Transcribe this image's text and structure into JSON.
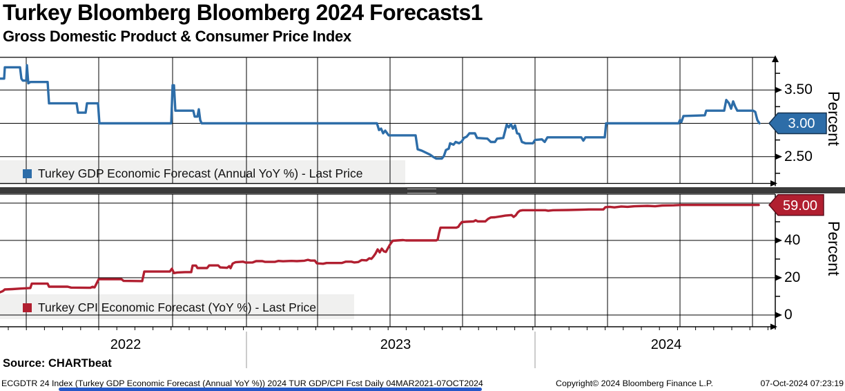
{
  "title": "Turkey Bloomberg Bloomberg 2024 Forecasts1",
  "subtitle": "Gross Domestic Product & Consumer Price Index",
  "source": "Source: CHARTbeat",
  "footer": {
    "index_info": "ECGDTR 24 Index (Turkey GDP Economic Forecast (Annual YoY %)) 2024 TUR GDP/CPI Fcst  Daily 04MAR2021-07OCT2024",
    "copyright": "Copyright© 2024 Bloomberg Finance L.P.",
    "datetime": "07-Oct-2024 07:23:19"
  },
  "x_axis": {
    "years": [
      "2022",
      "2023",
      "2024"
    ],
    "date_range": "04MAR2021-07OCT2024"
  },
  "chart_data": [
    {
      "type": "line",
      "panel": "top",
      "ylabel": "Percent",
      "ylim": [
        2.1,
        4.0
      ],
      "grid": true,
      "legend_position": "bottom-left",
      "yticks": [
        {
          "v": 3.5,
          "label": "3.50"
        },
        {
          "v": 3.0,
          "label": "",
          "tag": true
        },
        {
          "v": 2.5,
          "label": "2.50"
        }
      ],
      "yticks_minor": [
        3.75,
        3.25,
        2.75,
        2.25
      ],
      "grid_values": [
        3.5,
        3.0,
        2.5
      ],
      "series": [
        {
          "name": "Turkey GDP Economic Forecast (Annual YoY %) - Last Price",
          "color": "#2d6da8",
          "last_price": "3.00",
          "last_value": 3.0,
          "points": [
            [
              0,
              3.67
            ],
            [
              6,
              3.67
            ],
            [
              7,
              3.84
            ],
            [
              29,
              3.84
            ],
            [
              31,
              3.67
            ],
            [
              33,
              3.64
            ],
            [
              38,
              3.64
            ],
            [
              39,
              3.87
            ],
            [
              41,
              3.6
            ],
            [
              44,
              3.62
            ],
            [
              69,
              3.62
            ],
            [
              71,
              3.3
            ],
            [
              111,
              3.3
            ],
            [
              113,
              3.16
            ],
            [
              124,
              3.16
            ],
            [
              126,
              3.3
            ],
            [
              142,
              3.3
            ],
            [
              144,
              3.0
            ],
            [
              248,
              3.0
            ],
            [
              250,
              3.57
            ],
            [
              252,
              3.57
            ],
            [
              254,
              3.19
            ],
            [
              280,
              3.19
            ],
            [
              282,
              3.1
            ],
            [
              286,
              3.1
            ],
            [
              288,
              3.21
            ],
            [
              290,
              3.05
            ],
            [
              292,
              3.0
            ],
            [
              546,
              3.0
            ],
            [
              549,
              2.9
            ],
            [
              552,
              2.92
            ],
            [
              555,
              2.85
            ],
            [
              558,
              2.89
            ],
            [
              563,
              2.82
            ],
            [
              602,
              2.82
            ],
            [
              605,
              2.61
            ],
            [
              611,
              2.59
            ],
            [
              617,
              2.56
            ],
            [
              623,
              2.53
            ],
            [
              627,
              2.5
            ],
            [
              632,
              2.47
            ],
            [
              640,
              2.47
            ],
            [
              643,
              2.51
            ],
            [
              646,
              2.6
            ],
            [
              650,
              2.62
            ],
            [
              652,
              2.7
            ],
            [
              657,
              2.68
            ],
            [
              660,
              2.72
            ],
            [
              665,
              2.7
            ],
            [
              669,
              2.73
            ],
            [
              672,
              2.78
            ],
            [
              676,
              2.8
            ],
            [
              680,
              2.85
            ],
            [
              688,
              2.85
            ],
            [
              691,
              2.78
            ],
            [
              706,
              2.77
            ],
            [
              711,
              2.72
            ],
            [
              717,
              2.72
            ],
            [
              720,
              2.77
            ],
            [
              729,
              2.78
            ],
            [
              732,
              2.9
            ],
            [
              734,
              2.98
            ],
            [
              737,
              2.94
            ],
            [
              740,
              2.99
            ],
            [
              743,
              2.92
            ],
            [
              746,
              2.97
            ],
            [
              749,
              2.85
            ],
            [
              752,
              2.84
            ],
            [
              756,
              2.72
            ],
            [
              761,
              2.7
            ],
            [
              772,
              2.7
            ],
            [
              775,
              2.75
            ],
            [
              785,
              2.76
            ],
            [
              789,
              2.72
            ],
            [
              793,
              2.79
            ],
            [
              842,
              2.79
            ],
            [
              845,
              2.74
            ],
            [
              848,
              2.79
            ],
            [
              876,
              2.79
            ],
            [
              878,
              3.0
            ],
            [
              983,
              3.0
            ],
            [
              985,
              3.05
            ],
            [
              987,
              3.02
            ],
            [
              990,
              3.11
            ],
            [
              1021,
              3.12
            ],
            [
              1023,
              3.19
            ],
            [
              1049,
              3.19
            ],
            [
              1052,
              3.35
            ],
            [
              1056,
              3.3
            ],
            [
              1059,
              3.22
            ],
            [
              1062,
              3.33
            ],
            [
              1065,
              3.25
            ],
            [
              1068,
              3.19
            ],
            [
              1091,
              3.19
            ],
            [
              1094,
              3.17
            ],
            [
              1097,
              3.05
            ],
            [
              1100,
              3.0
            ]
          ]
        }
      ]
    },
    {
      "type": "line",
      "panel": "bottom",
      "ylabel": "Percent",
      "ylim": [
        -6,
        65
      ],
      "grid": true,
      "legend_position": "bottom-left",
      "yticks": [
        {
          "v": 40,
          "label": "40"
        },
        {
          "v": 20,
          "label": "20"
        },
        {
          "v": 0,
          "label": "0"
        }
      ],
      "yticks_minor": [
        50,
        30,
        10
      ],
      "grid_values": [
        60,
        40,
        20,
        0
      ],
      "series": [
        {
          "name": "Turkey CPI Economic Forecast (YoY %) - Last Price",
          "color": "#b11f30",
          "last_price": "59.00",
          "last_value": 59.0,
          "points": [
            [
              0,
              12.2
            ],
            [
              4,
              12.8
            ],
            [
              7,
              13.7
            ],
            [
              18,
              13.9
            ],
            [
              30,
              14.2
            ],
            [
              44,
              14.5
            ],
            [
              46,
              16.8
            ],
            [
              69,
              16.8
            ],
            [
              71,
              15.2
            ],
            [
              98,
              15.2
            ],
            [
              103,
              14.7
            ],
            [
              131,
              14.6
            ],
            [
              134,
              15.1
            ],
            [
              137,
              14.8
            ],
            [
              143,
              19.2
            ],
            [
              176,
              19.2
            ],
            [
              179,
              18.3
            ],
            [
              206,
              18.2
            ],
            [
              209,
              23.3
            ],
            [
              246,
              23.3
            ],
            [
              249,
              24.8
            ],
            [
              252,
              22.5
            ],
            [
              257,
              22.8
            ],
            [
              268,
              23.0
            ],
            [
              277,
              23.0
            ],
            [
              279,
              26.5
            ],
            [
              284,
              26.5
            ],
            [
              286,
              25.2
            ],
            [
              300,
              25.2
            ],
            [
              303,
              26.6
            ],
            [
              316,
              26.6
            ],
            [
              319,
              25.5
            ],
            [
              329,
              25.3
            ],
            [
              332,
              26.2
            ],
            [
              334,
              25.1
            ],
            [
              337,
              27.6
            ],
            [
              341,
              28.3
            ],
            [
              352,
              28.6
            ],
            [
              356,
              28.1
            ],
            [
              366,
              28.2
            ],
            [
              371,
              28.9
            ],
            [
              380,
              28.9
            ],
            [
              384,
              28.5
            ],
            [
              398,
              28.5
            ],
            [
              403,
              29.0
            ],
            [
              410,
              28.8
            ],
            [
              422,
              29.0
            ],
            [
              430,
              28.9
            ],
            [
              441,
              29.1
            ],
            [
              446,
              29.6
            ],
            [
              450,
              29.2
            ],
            [
              456,
              29.2
            ],
            [
              459,
              27.7
            ],
            [
              468,
              27.5
            ],
            [
              473,
              27.9
            ],
            [
              495,
              27.9
            ],
            [
              501,
              28.6
            ],
            [
              509,
              28.6
            ],
            [
              513,
              28.2
            ],
            [
              519,
              28.4
            ],
            [
              524,
              29.5
            ],
            [
              531,
              29.3
            ],
            [
              535,
              30.4
            ],
            [
              538,
              30.1
            ],
            [
              541,
              31.4
            ],
            [
              544,
              33.0
            ],
            [
              547,
              35.2
            ],
            [
              550,
              33.6
            ],
            [
              553,
              35.6
            ],
            [
              556,
              34.2
            ],
            [
              559,
              33.8
            ],
            [
              563,
              36.5
            ],
            [
              566,
              38.4
            ],
            [
              569,
              39.8
            ],
            [
              576,
              40.0
            ],
            [
              584,
              40.2
            ],
            [
              588,
              40.0
            ],
            [
              632,
              40.0
            ],
            [
              634,
              40.4
            ],
            [
              636,
              44.0
            ],
            [
              638,
              46.8
            ],
            [
              661,
              46.8
            ],
            [
              664,
              47.3
            ],
            [
              666,
              48.5
            ],
            [
              669,
              49.8
            ],
            [
              675,
              50.0
            ],
            [
              686,
              50.2
            ],
            [
              689,
              50.8
            ],
            [
              692,
              50.2
            ],
            [
              703,
              50.2
            ],
            [
              707,
              51.5
            ],
            [
              711,
              52.3
            ],
            [
              717,
              52.4
            ],
            [
              727,
              53.0
            ],
            [
              732,
              53.3
            ],
            [
              741,
              53.6
            ],
            [
              744,
              52.6
            ],
            [
              747,
              53.4
            ],
            [
              750,
              55.0
            ],
            [
              753,
              55.9
            ],
            [
              757,
              56.2
            ],
            [
              790,
              56.2
            ],
            [
              794,
              55.9
            ],
            [
              801,
              56.2
            ],
            [
              823,
              56.3
            ],
            [
              846,
              56.5
            ],
            [
              853,
              56.6
            ],
            [
              874,
              56.6
            ],
            [
              877,
              57.8
            ],
            [
              883,
              58.0
            ],
            [
              890,
              57.7
            ],
            [
              900,
              58.2
            ],
            [
              909,
              58.0
            ],
            [
              919,
              58.3
            ],
            [
              938,
              58.5
            ],
            [
              949,
              58.3
            ],
            [
              959,
              58.7
            ],
            [
              976,
              58.8
            ],
            [
              987,
              59.0
            ],
            [
              1099,
              59.0
            ]
          ]
        }
      ]
    }
  ]
}
